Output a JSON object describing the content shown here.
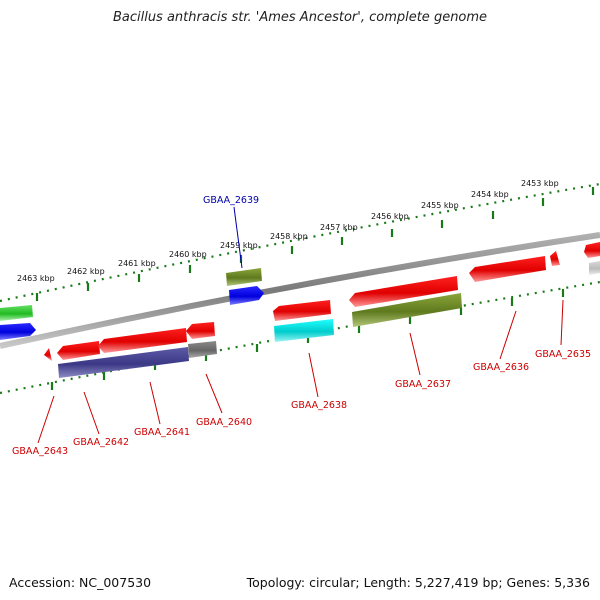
{
  "title": "Bacillus anthracis str. 'Ames Ancestor', complete genome",
  "accession_text": "Accession: NC_007530",
  "stats_text": "Topology: circular; Length: 5,227,419 bp; Genes: 5,336",
  "colors": {
    "backbone": "#8a8a8a",
    "tick_track": "#1a7a1a",
    "label_red": "#cc0000",
    "label_blue": "#0000aa"
  },
  "kbp_labels": [
    "2463 kbp",
    "2462 kbp",
    "2461 kbp",
    "2460 kbp",
    "2459 kbp",
    "2458 kbp",
    "2457 kbp",
    "2456 kbp",
    "2455 kbp",
    "2454 kbp",
    "2453 kbp"
  ],
  "gene_labels": [
    "GBAA_2639",
    "GBAA_2643",
    "GBAA_2642",
    "GBAA_2641",
    "GBAA_2640",
    "GBAA_2638",
    "GBAA_2637",
    "GBAA_2636",
    "GBAA_2635"
  ]
}
